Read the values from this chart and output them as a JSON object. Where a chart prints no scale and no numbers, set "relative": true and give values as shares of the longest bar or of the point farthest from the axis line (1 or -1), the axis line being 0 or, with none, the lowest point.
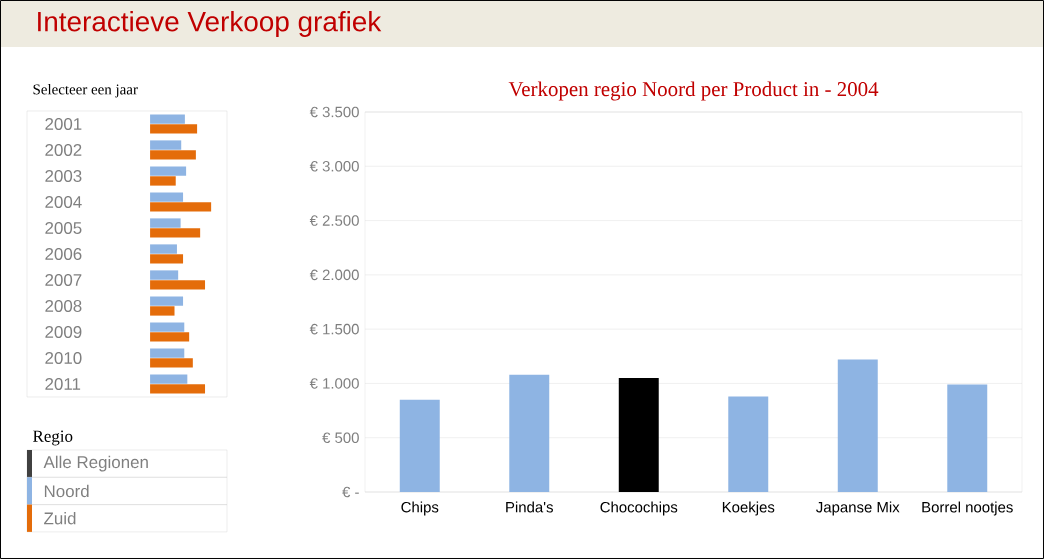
{
  "chart_data": [
    {
      "type": "other",
      "title": "Interactieve Verkoop grafiek"
    },
    {
      "type": "bar",
      "orientation": "horizontal",
      "relative": true,
      "title": "Selecteer een jaar",
      "categories": [
        "2001",
        "2002",
        "2003",
        "2004",
        "2005",
        "2006",
        "2007",
        "2008",
        "2009",
        "2010",
        "2011"
      ],
      "series": [
        {
          "color": "#8eb4e3",
          "values": [
            0.57,
            0.51,
            0.59,
            0.54,
            0.5,
            0.44,
            0.46,
            0.54,
            0.56,
            0.56,
            0.61
          ]
        },
        {
          "color": "#e46c0a",
          "values": [
            0.77,
            0.75,
            0.42,
            1,
            0.82,
            0.54,
            0.9,
            0.4,
            0.64,
            0.7,
            0.9
          ]
        }
      ]
    },
    {
      "type": "bar",
      "title": "Verkopen regio Noord per Product in - 2004",
      "categories": [
        "Chips",
        "Pinda's",
        "Chocochips",
        "Koekjes",
        "Japanse Mix",
        "Borrel nootjes"
      ],
      "values": [
        850,
        1080,
        1050,
        880,
        1220,
        990
      ],
      "colors": [
        "#8eb4e3",
        "#8eb4e3",
        "#000000",
        "#8eb4e3",
        "#8eb4e3",
        "#8eb4e3"
      ],
      "ylim": [
        0,
        3500
      ],
      "yticks": [
        {
          "value": 0,
          "label": "€ -"
        },
        {
          "value": 500,
          "label": "€ 500"
        },
        {
          "value": 1000,
          "label": "€ 1.000"
        },
        {
          "value": 1500,
          "label": "€ 1.500"
        },
        {
          "value": 2000,
          "label": "€ 2.000"
        },
        {
          "value": 2500,
          "label": "€ 2.500"
        },
        {
          "value": 3000,
          "label": "€ 3.000"
        },
        {
          "value": 3500,
          "label": "€ 3.500"
        }
      ],
      "grid": "y"
    },
    {
      "type": "other",
      "title": "Regio",
      "annotations": [
        "Alle Regionen",
        "Noord",
        "Zuid"
      ]
    }
  ]
}
